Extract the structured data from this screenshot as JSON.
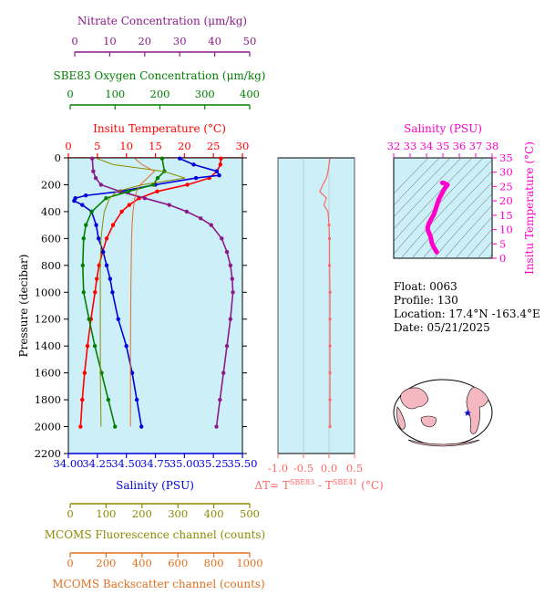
{
  "colors": {
    "nitrate": "#8b1a8b",
    "oxygen": "#008000",
    "temperature": "#ff0000",
    "salinity": "#0000dd",
    "fluorescence": "#8b8b00",
    "backscatter": "#e07020",
    "density": "#6a1b9a",
    "delta_t": "#ff6666",
    "ts_curve": "#ff00cc",
    "panel_bg": "#cdf0f8"
  },
  "axes": {
    "nitrate": {
      "title": "Nitrate Concentration (μm/kg)",
      "ticks": [
        "0",
        "10",
        "20",
        "30",
        "40",
        "50"
      ],
      "range": [
        0,
        50
      ]
    },
    "oxygen": {
      "title": "SBE83 Oxygen Concentration (μm/kg)",
      "ticks": [
        "0",
        "100",
        "200",
        "300",
        "400"
      ],
      "range": [
        0,
        400
      ]
    },
    "temperature": {
      "title": "Insitu Temperature (°C)",
      "ticks": [
        "0",
        "5",
        "10",
        "15",
        "20",
        "25",
        "30"
      ],
      "range": [
        0,
        30
      ]
    },
    "pressure": {
      "title": "Pressure (decibar)",
      "ticks": [
        "0",
        "200",
        "400",
        "600",
        "800",
        "1000",
        "1200",
        "1400",
        "1600",
        "1800",
        "2000",
        "2200"
      ],
      "range": [
        0,
        2200
      ]
    },
    "salinity": {
      "title": "Salinity (PSU)",
      "ticks": [
        "34.00",
        "34.25",
        "34.50",
        "34.75",
        "35.00",
        "35.25",
        "35.50"
      ],
      "range": [
        34.0,
        35.5
      ]
    },
    "fluorescence": {
      "title": "MCOMS Fluorescence channel (counts)",
      "ticks": [
        "0",
        "100",
        "200",
        "300",
        "400",
        "500"
      ],
      "range": [
        0,
        500
      ]
    },
    "backscatter": {
      "title": "MCOMS Backscatter channel (counts)",
      "ticks": [
        "0",
        "200",
        "400",
        "600",
        "800",
        "1000"
      ],
      "range": [
        0,
        1000
      ]
    },
    "delta_t": {
      "ticks": [
        "-1.0",
        "-0.5",
        "0.0",
        "0.5"
      ],
      "range": [
        -1.0,
        0.5
      ],
      "label_main": "ΔT= T",
      "label_sup1": "SBE83",
      "label_mid": " - T",
      "label_sup2": "SBE41",
      "label_unit": " (°C)"
    },
    "ts_salinity": {
      "title": "Salinity (PSU)",
      "ticks": [
        "32",
        "33",
        "34",
        "35",
        "36",
        "37",
        "38"
      ],
      "range": [
        32,
        38
      ]
    },
    "ts_temperature": {
      "title": "Insitu Temperature (°C)",
      "ticks": [
        "0",
        "5",
        "10",
        "15",
        "20",
        "25",
        "30",
        "35"
      ],
      "range": [
        0,
        35
      ]
    }
  },
  "info": {
    "float": "Float:  0063",
    "profile": "Profile:  130",
    "location": "Location:  17.4°N  -163.4°E",
    "date": "Date:  05/21/2025"
  },
  "chart_data": [
    {
      "type": "line",
      "name": "Temperature",
      "axis": "temperature",
      "pressure": [
        5,
        50,
        100,
        150,
        200,
        250,
        300,
        350,
        400,
        500,
        600,
        700,
        800,
        900,
        1000,
        1200,
        1400,
        1600,
        1800,
        2000
      ],
      "values": [
        26.3,
        26.2,
        25.6,
        24.3,
        20.5,
        15.3,
        12.2,
        10.5,
        9.2,
        7.7,
        6.6,
        5.9,
        5.3,
        4.9,
        4.6,
        3.9,
        3.3,
        2.8,
        2.4,
        2.1
      ]
    },
    {
      "type": "line",
      "name": "Salinity",
      "axis": "salinity",
      "pressure": [
        5,
        50,
        100,
        130,
        150,
        200,
        250,
        280,
        300,
        320,
        350,
        400,
        500,
        600,
        700,
        800,
        900,
        1000,
        1200,
        1400,
        1600,
        1800,
        2000
      ],
      "values": [
        34.96,
        35.08,
        35.28,
        35.3,
        35.1,
        34.75,
        34.45,
        34.15,
        34.06,
        34.05,
        34.12,
        34.2,
        34.24,
        34.26,
        34.3,
        34.33,
        34.36,
        34.38,
        34.43,
        34.5,
        34.55,
        34.59,
        34.63
      ]
    },
    {
      "type": "line",
      "name": "Nitrate",
      "axis": "nitrate",
      "pressure": [
        5,
        100,
        150,
        200,
        250,
        300,
        350,
        400,
        450,
        500,
        600,
        700,
        800,
        900,
        1000,
        1200,
        1400,
        1600,
        1800,
        2000
      ],
      "values": [
        5,
        5.3,
        6,
        7.5,
        13,
        20,
        27,
        32,
        36,
        39,
        42,
        43.5,
        44.5,
        45,
        45.2,
        44.5,
        43.5,
        42.5,
        41.5,
        40.5
      ]
    },
    {
      "type": "line",
      "name": "Oxygen",
      "axis": "oxygen",
      "pressure": [
        5,
        100,
        150,
        200,
        250,
        300,
        400,
        500,
        600,
        800,
        1000,
        1200,
        1400,
        1600,
        1800,
        2000
      ],
      "values": [
        205,
        210,
        195,
        185,
        130,
        80,
        48,
        35,
        30,
        28,
        30,
        42,
        55,
        70,
        85,
        100
      ]
    },
    {
      "type": "line",
      "name": "Fluorescence",
      "axis": "fluorescence",
      "pressure": [
        5,
        50,
        100,
        150,
        200,
        250,
        300,
        400,
        500,
        600,
        800,
        1000,
        1200,
        1400,
        1600,
        1800,
        2000
      ],
      "values": [
        75,
        120,
        260,
        320,
        200,
        130,
        110,
        95,
        90,
        86,
        84,
        84,
        84,
        84,
        84,
        85,
        86
      ]
    },
    {
      "type": "line",
      "name": "Backscatter",
      "axis": "backscatter",
      "pressure": [
        5,
        50,
        100,
        150,
        200,
        250,
        300,
        400,
        500,
        600,
        800,
        1000,
        1200,
        1400,
        1600,
        1800,
        2000
      ],
      "values": [
        360,
        400,
        470,
        430,
        390,
        370,
        360,
        350,
        345,
        342,
        340,
        338,
        337,
        336,
        336,
        336,
        336
      ]
    },
    {
      "type": "line",
      "name": "DeltaT",
      "axis": "delta_t",
      "pressure": [
        5,
        50,
        100,
        150,
        200,
        250,
        300,
        350,
        400,
        500,
        600,
        800,
        1000,
        1200,
        1400,
        1600,
        1800,
        2000
      ],
      "values": [
        0.02,
        0.0,
        -0.02,
        -0.05,
        -0.12,
        -0.18,
        -0.05,
        -0.1,
        -0.02,
        0.0,
        0.01,
        0.01,
        0.02,
        0.02,
        0.02,
        0.02,
        0.02,
        0.02
      ]
    },
    {
      "type": "line",
      "name": "TS",
      "salinity": [
        34.96,
        35.08,
        35.28,
        35.1,
        34.75,
        34.45,
        34.15,
        34.06,
        34.12,
        34.24,
        34.33,
        34.38,
        34.5,
        34.63
      ],
      "temperature": [
        26.3,
        26.2,
        25.6,
        24.3,
        20.5,
        15.3,
        12.2,
        10.5,
        9.2,
        7.7,
        5.3,
        4.6,
        3.3,
        2.1
      ]
    }
  ]
}
